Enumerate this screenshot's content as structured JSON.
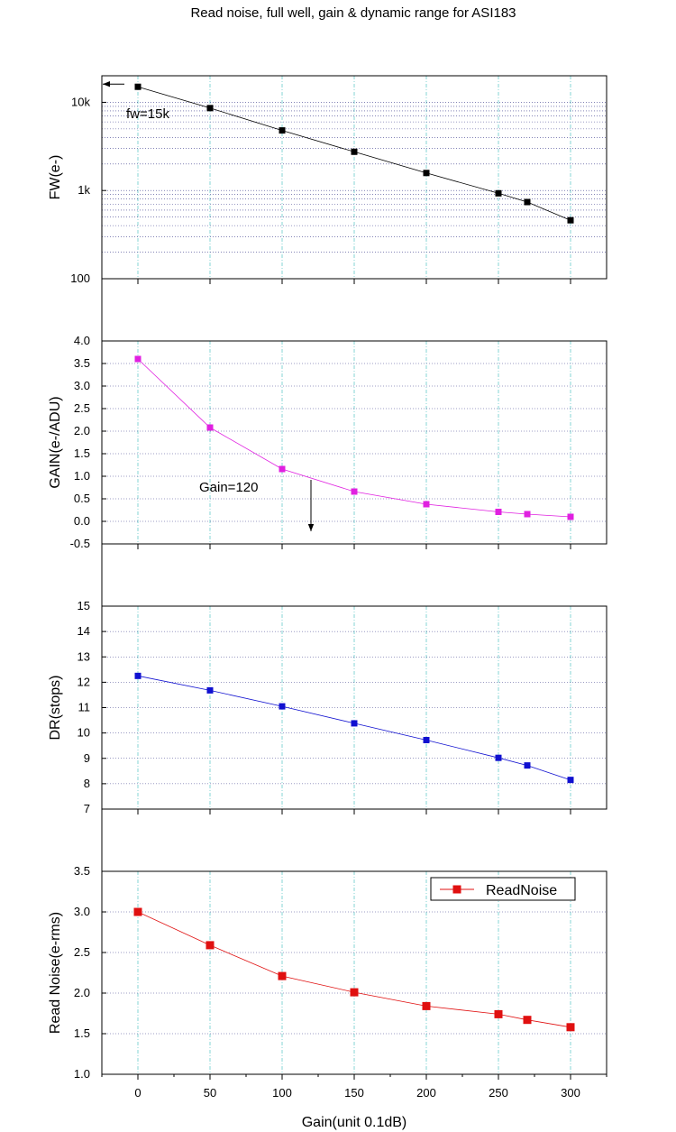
{
  "title": "Read noise, full well, gain & dynamic range for ASI183",
  "chart_data": [
    {
      "type": "line",
      "id": "fw",
      "ylabel": "FW(e-)",
      "yscale": "log",
      "ylim": [
        100,
        20000
      ],
      "yticks": [
        100,
        1000,
        10000
      ],
      "ytick_labels": [
        "100",
        "1k",
        "10k"
      ],
      "x": [
        0,
        50,
        100,
        150,
        200,
        250,
        270,
        300
      ],
      "series": [
        {
          "values": [
            15000,
            8600,
            4800,
            2750,
            1580,
            930,
            740,
            460
          ],
          "color": "#000000"
        }
      ],
      "annotation": {
        "text": "fw=15k",
        "x": 0,
        "y": 15000
      }
    },
    {
      "type": "line",
      "id": "gain",
      "ylabel": "GAIN(e-/ADU)",
      "ylim": [
        -0.5,
        4.0
      ],
      "yticks": [
        -0.5,
        0.0,
        0.5,
        1.0,
        1.5,
        2.0,
        2.5,
        3.0,
        3.5,
        4.0
      ],
      "ytick_labels": [
        "-0.5",
        "0.0",
        "0.5",
        "1.0",
        "1.5",
        "2.0",
        "2.5",
        "3.0",
        "3.5",
        "4.0"
      ],
      "x": [
        0,
        50,
        100,
        150,
        200,
        250,
        270,
        300
      ],
      "series": [
        {
          "values": [
            3.6,
            2.08,
            1.16,
            0.66,
            0.38,
            0.21,
            0.16,
            0.1
          ],
          "color": "#e020e0"
        }
      ],
      "annotation": {
        "text": "Gain=120",
        "x": 120
      }
    },
    {
      "type": "line",
      "id": "dr",
      "ylabel": "DR(stops)",
      "ylim": [
        7,
        15
      ],
      "yticks": [
        7,
        8,
        9,
        10,
        11,
        12,
        13,
        14,
        15
      ],
      "ytick_labels": [
        "7",
        "8",
        "9",
        "10",
        "11",
        "12",
        "13",
        "14",
        "15"
      ],
      "x": [
        0,
        50,
        100,
        150,
        200,
        250,
        270,
        300
      ],
      "series": [
        {
          "values": [
            12.25,
            11.68,
            11.05,
            10.38,
            9.72,
            9.02,
            8.72,
            8.15
          ],
          "color": "#1010d0"
        }
      ]
    },
    {
      "type": "line",
      "id": "readnoise",
      "ylabel": "Read Noise(e-rms)",
      "xlabel": "Gain(unit 0.1dB)",
      "ylim": [
        1.0,
        3.5
      ],
      "yticks": [
        1.0,
        1.5,
        2.0,
        2.5,
        3.0,
        3.5
      ],
      "ytick_labels": [
        "1.0",
        "1.5",
        "2.0",
        "2.5",
        "3.0",
        "3.5"
      ],
      "xlim": [
        -25,
        325
      ],
      "xticks": [
        0,
        50,
        100,
        150,
        200,
        250,
        300
      ],
      "xtick_labels": [
        "0",
        "50",
        "100",
        "150",
        "200",
        "250",
        "300"
      ],
      "x": [
        0,
        50,
        100,
        150,
        200,
        250,
        270,
        300
      ],
      "series": [
        {
          "name": "ReadNoise",
          "values": [
            3.0,
            2.59,
            2.21,
            2.01,
            1.84,
            1.74,
            1.67,
            1.58
          ],
          "color": "#e01010"
        }
      ],
      "legend": "top-right"
    }
  ]
}
